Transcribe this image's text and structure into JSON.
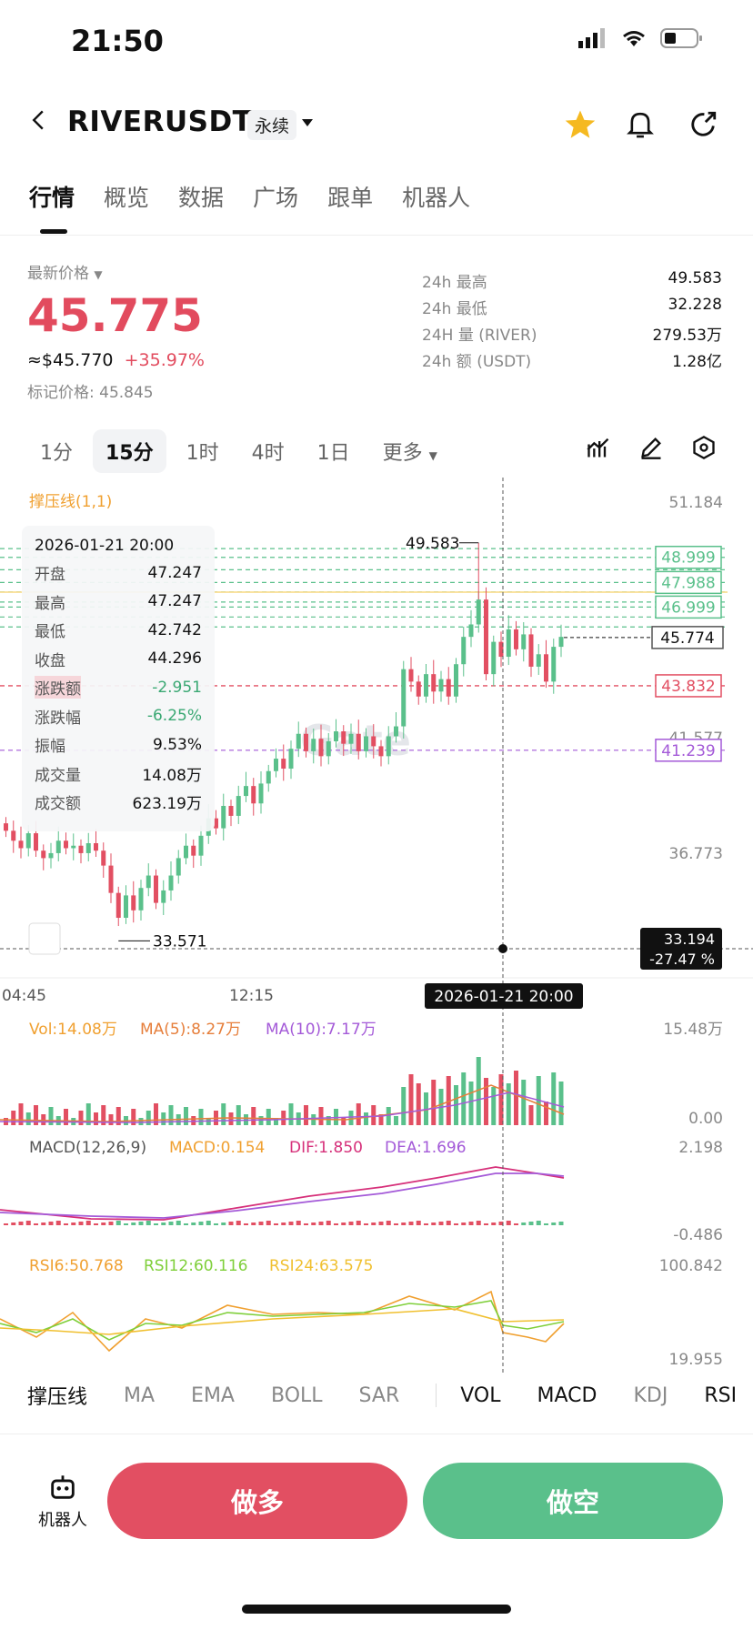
{
  "status_bar": {
    "time": "21:50"
  },
  "header": {
    "pair": "RIVERUSDT",
    "contract_type": "永续",
    "favorited": true
  },
  "tabs": [
    {
      "label": "行情",
      "active": true
    },
    {
      "label": "概览"
    },
    {
      "label": "数据"
    },
    {
      "label": "广场"
    },
    {
      "label": "跟单"
    },
    {
      "label": "机器人"
    }
  ],
  "ticker": {
    "latest_label": "最新价格",
    "price": "45.775",
    "usd_value": "≈$45.770",
    "change_pct": "+35.97%",
    "mark_price": "标记价格: 45.845",
    "stats": [
      {
        "k": "24h  最高",
        "v": "49.583"
      },
      {
        "k": "24h  最低",
        "v": "32.228"
      },
      {
        "k": "24H  量 (RIVER)",
        "v": "279.53万"
      },
      {
        "k": "24h  额 (USDT)",
        "v": "1.28亿"
      }
    ]
  },
  "intervals": [
    {
      "label": "1分"
    },
    {
      "label": "15分",
      "active": true
    },
    {
      "label": "1时"
    },
    {
      "label": "4时"
    },
    {
      "label": "1日"
    },
    {
      "label": "更多"
    }
  ],
  "chart": {
    "indicator_name": "撑压线(1,1)",
    "price_axis": [
      "51.184",
      "41.577",
      "36.773"
    ],
    "level_tags_green": [
      "48.999",
      "47.988",
      "46.999"
    ],
    "current_tag": "45.774",
    "red_tag": "43.832",
    "purple_tag": "41.239",
    "high_label": "49.583",
    "low_label": "33.571",
    "cursor_tag": [
      "33.194",
      "-27.47 %"
    ],
    "time_axis": [
      "04:45",
      "12:15"
    ],
    "cursor_time": "2026-01-21 20:00",
    "watermark": "Gate",
    "tooltip": {
      "time": "2026-01-21 20:00",
      "rows": [
        {
          "k": "开盘",
          "v": "47.247"
        },
        {
          "k": "最高",
          "v": "47.247"
        },
        {
          "k": "最低",
          "v": "42.742"
        },
        {
          "k": "收盘",
          "v": "44.296"
        },
        {
          "k": "涨跌额",
          "v": "-2.951"
        },
        {
          "k": "涨跌幅",
          "v": "-6.25%"
        },
        {
          "k": "振幅",
          "v": "9.53%"
        },
        {
          "k": "成交量",
          "v": "14.08万"
        },
        {
          "k": "成交额",
          "v": "623.19万"
        }
      ]
    },
    "vol": {
      "label": "Vol:14.08万",
      "ma5": "MA(5):8.27万",
      "ma10": "MA(10):7.17万",
      "max": "15.48万",
      "min": "0.00"
    },
    "macd": {
      "label": "MACD(12,26,9)",
      "macd": "MACD:0.154",
      "dif": "DIF:1.850",
      "dea": "DEA:1.696",
      "max": "2.198",
      "min": "-0.486"
    },
    "rsi": {
      "rsi6": "RSI6:50.768",
      "rsi12": "RSI12:60.116",
      "rsi24": "RSI24:63.575",
      "max": "100.842",
      "min": "19.955"
    },
    "colors": {
      "up": "#5ac08b",
      "down": "#e24f62"
    }
  },
  "indicator_tabs": [
    {
      "label": "撑压线",
      "on": true
    },
    {
      "label": "MA"
    },
    {
      "label": "EMA"
    },
    {
      "label": "BOLL"
    },
    {
      "label": "SAR"
    },
    {
      "label": "VOL",
      "on": true
    },
    {
      "label": "MACD",
      "on": true
    },
    {
      "label": "KDJ"
    },
    {
      "label": "RSI",
      "on": true
    }
  ],
  "bottom": {
    "robot_label": "机器人",
    "long_label": "做多",
    "short_label": "做空"
  }
}
